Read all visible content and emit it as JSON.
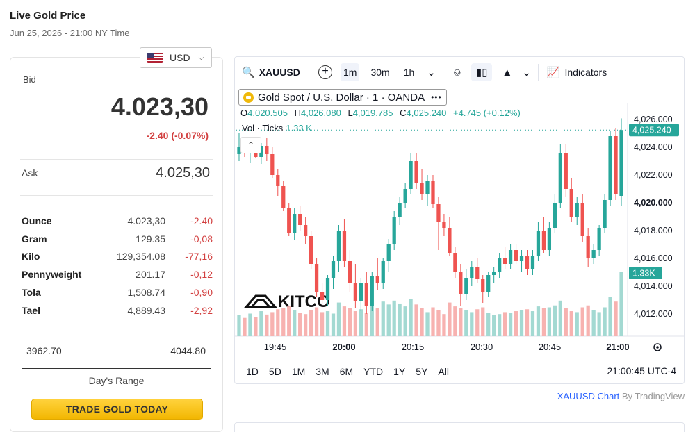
{
  "header": {
    "title": "Live Gold Price",
    "date": "Jun 25, 2026 - 21:00 NY Time"
  },
  "currency": {
    "selected": "USD"
  },
  "quote": {
    "bid_label": "Bid",
    "bid": "4.023,30",
    "bid_change": "-2.40 (-0.07%)",
    "ask_label": "Ask",
    "ask": "4.025,30",
    "units": [
      {
        "name": "Ounce",
        "price": "4.023,30",
        "change": "-2.40"
      },
      {
        "name": "Gram",
        "price": "129.35",
        "change": "-0,08"
      },
      {
        "name": "Kilo",
        "price": "129,354.08",
        "change": "-77,16"
      },
      {
        "name": "Pennyweight",
        "price": "201.17",
        "change": "-0,12"
      },
      {
        "name": "Tola",
        "price": "1,508.74",
        "change": "-0,90"
      },
      {
        "name": "Tael",
        "price": "4,889.43",
        "change": "-2,92"
      }
    ],
    "range_low": "3962.70",
    "range_high": "4044.80",
    "range_label": "Day's Range",
    "trade_button": "TRADE GOLD TODAY"
  },
  "toolbar": {
    "symbol": "XAUUSD",
    "intervals": [
      "1m",
      "30m",
      "1h"
    ],
    "active_interval": "1m",
    "indicators_label": "Indicators"
  },
  "legend": {
    "title": "Gold Spot / U.S. Dollar · 1 · OANDA",
    "o_label": "O",
    "o": "4,020.505",
    "h_label": "H",
    "h": "4,026.080",
    "l_label": "L",
    "l": "4,019.785",
    "c_label": "C",
    "c": "4,025.240",
    "change": "+4.745 (+0.12%)",
    "vol_label": "Vol · Ticks",
    "vol_value": "1.33 K"
  },
  "watermark": "KITCO",
  "periods": [
    "1D",
    "5D",
    "1M",
    "3M",
    "6M",
    "YTD",
    "1Y",
    "5Y",
    "All"
  ],
  "clock": "21:00:45 UTC-4",
  "attribution": {
    "link": "XAUUSD Chart",
    "by": "By TradingView"
  },
  "colors": {
    "up": "#26a69a",
    "down": "#ef5350",
    "vol_up": "#a3d9d2",
    "vol_down": "#f7b2b0",
    "price_label": "#26a69a"
  },
  "chart_data": {
    "type": "candlestick",
    "x_ticks": [
      "19:45",
      "20:00",
      "20:15",
      "20:30",
      "20:45",
      "21:00"
    ],
    "x_ticks_bold": [
      "20:00",
      "21:00"
    ],
    "y_ticks": [
      "4,026.000",
      "4,024.000",
      "4,022.000",
      "4,020.000",
      "4,018.000",
      "4,016.000",
      "4,014.000",
      "4,012.000"
    ],
    "y_ticks_bold": [
      "4,020.000"
    ],
    "ylim": [
      4010.4,
      4027.0
    ],
    "last_price_label": "4,025.240",
    "last_price": 4025.24,
    "volume_label": "1.33K",
    "candles": [
      {
        "o": 4023.5,
        "h": 4025.0,
        "l": 4023.0,
        "c": 4024.0,
        "v": 0.44
      },
      {
        "o": 4024.0,
        "h": 4024.6,
        "l": 4023.3,
        "c": 4023.6,
        "v": 0.38
      },
      {
        "o": 4023.6,
        "h": 4024.2,
        "l": 4022.9,
        "c": 4023.9,
        "v": 0.47
      },
      {
        "o": 4023.9,
        "h": 4024.5,
        "l": 4023.2,
        "c": 4023.3,
        "v": 0.4
      },
      {
        "o": 4023.3,
        "h": 4024.3,
        "l": 4022.8,
        "c": 4024.1,
        "v": 0.52
      },
      {
        "o": 4024.1,
        "h": 4024.7,
        "l": 4023.0,
        "c": 4023.5,
        "v": 0.45
      },
      {
        "o": 4023.5,
        "h": 4024.0,
        "l": 4021.8,
        "c": 4022.0,
        "v": 0.5
      },
      {
        "o": 4022.0,
        "h": 4022.4,
        "l": 4020.5,
        "c": 4021.2,
        "v": 0.56
      },
      {
        "o": 4021.2,
        "h": 4021.6,
        "l": 4019.4,
        "c": 4019.6,
        "v": 0.58
      },
      {
        "o": 4019.6,
        "h": 4020.0,
        "l": 4017.6,
        "c": 4017.8,
        "v": 0.62
      },
      {
        "o": 4017.8,
        "h": 4019.6,
        "l": 4017.3,
        "c": 4019.2,
        "v": 0.54
      },
      {
        "o": 4019.2,
        "h": 4019.8,
        "l": 4018.0,
        "c": 4018.4,
        "v": 0.48
      },
      {
        "o": 4018.4,
        "h": 4019.0,
        "l": 4017.0,
        "c": 4017.6,
        "v": 0.46
      },
      {
        "o": 4017.6,
        "h": 4018.0,
        "l": 4015.2,
        "c": 4015.6,
        "v": 0.55
      },
      {
        "o": 4015.6,
        "h": 4016.0,
        "l": 4013.2,
        "c": 4013.6,
        "v": 0.6
      },
      {
        "o": 4013.6,
        "h": 4014.2,
        "l": 4012.4,
        "c": 4013.0,
        "v": 0.5
      },
      {
        "o": 4013.0,
        "h": 4014.8,
        "l": 4012.6,
        "c": 4014.6,
        "v": 0.52
      },
      {
        "o": 4014.6,
        "h": 4016.2,
        "l": 4013.8,
        "c": 4015.8,
        "v": 0.47
      },
      {
        "o": 4015.8,
        "h": 4018.4,
        "l": 4015.0,
        "c": 4018.0,
        "v": 0.7
      },
      {
        "o": 4018.0,
        "h": 4018.8,
        "l": 4015.4,
        "c": 4015.8,
        "v": 0.62
      },
      {
        "o": 4015.8,
        "h": 4016.6,
        "l": 4013.6,
        "c": 4014.2,
        "v": 0.58
      },
      {
        "o": 4014.2,
        "h": 4015.6,
        "l": 4012.4,
        "c": 4012.9,
        "v": 0.52
      },
      {
        "o": 4012.9,
        "h": 4014.6,
        "l": 4012.2,
        "c": 4014.2,
        "v": 0.56
      },
      {
        "o": 4014.2,
        "h": 4015.0,
        "l": 4012.0,
        "c": 4012.6,
        "v": 0.48
      },
      {
        "o": 4012.6,
        "h": 4015.0,
        "l": 4012.2,
        "c": 4014.7,
        "v": 0.64
      },
      {
        "o": 4014.7,
        "h": 4016.0,
        "l": 4013.7,
        "c": 4014.2,
        "v": 0.58
      },
      {
        "o": 4014.2,
        "h": 4016.0,
        "l": 4013.8,
        "c": 4015.8,
        "v": 0.72
      },
      {
        "o": 4015.8,
        "h": 4017.4,
        "l": 4015.0,
        "c": 4017.0,
        "v": 0.66
      },
      {
        "o": 4017.0,
        "h": 4019.4,
        "l": 4016.6,
        "c": 4019.0,
        "v": 0.74
      },
      {
        "o": 4019.0,
        "h": 4020.4,
        "l": 4018.4,
        "c": 4020.0,
        "v": 0.68
      },
      {
        "o": 4020.0,
        "h": 4021.4,
        "l": 4019.6,
        "c": 4021.0,
        "v": 0.62
      },
      {
        "o": 4021.0,
        "h": 4023.6,
        "l": 4020.6,
        "c": 4023.0,
        "v": 0.78
      },
      {
        "o": 4023.0,
        "h": 4023.6,
        "l": 4021.0,
        "c": 4021.4,
        "v": 0.66
      },
      {
        "o": 4021.4,
        "h": 4022.4,
        "l": 4020.2,
        "c": 4020.6,
        "v": 0.58
      },
      {
        "o": 4020.6,
        "h": 4022.0,
        "l": 4019.8,
        "c": 4021.6,
        "v": 0.5
      },
      {
        "o": 4021.6,
        "h": 4022.0,
        "l": 4019.6,
        "c": 4019.9,
        "v": 0.6
      },
      {
        "o": 4019.9,
        "h": 4020.4,
        "l": 4016.6,
        "c": 4018.6,
        "v": 0.54
      },
      {
        "o": 4018.6,
        "h": 4019.2,
        "l": 4017.6,
        "c": 4018.2,
        "v": 0.46
      },
      {
        "o": 4018.2,
        "h": 4019.0,
        "l": 4016.2,
        "c": 4016.4,
        "v": 0.7
      },
      {
        "o": 4016.4,
        "h": 4016.8,
        "l": 4014.6,
        "c": 4015.0,
        "v": 0.62
      },
      {
        "o": 4015.0,
        "h": 4015.6,
        "l": 4012.6,
        "c": 4013.4,
        "v": 0.58
      },
      {
        "o": 4013.4,
        "h": 4015.2,
        "l": 4013.0,
        "c": 4014.6,
        "v": 0.54
      },
      {
        "o": 4014.6,
        "h": 4015.8,
        "l": 4014.0,
        "c": 4015.4,
        "v": 0.5
      },
      {
        "o": 4015.4,
        "h": 4016.0,
        "l": 4014.2,
        "c": 4014.5,
        "v": 0.56
      },
      {
        "o": 4014.5,
        "h": 4014.8,
        "l": 4012.8,
        "c": 4013.6,
        "v": 0.6
      },
      {
        "o": 4013.6,
        "h": 4015.0,
        "l": 4013.2,
        "c": 4014.8,
        "v": 0.48
      },
      {
        "o": 4014.8,
        "h": 4015.4,
        "l": 4014.2,
        "c": 4015.0,
        "v": 0.44
      },
      {
        "o": 4015.0,
        "h": 4016.4,
        "l": 4014.6,
        "c": 4016.0,
        "v": 0.46
      },
      {
        "o": 4016.0,
        "h": 4016.8,
        "l": 4015.2,
        "c": 4015.6,
        "v": 0.5
      },
      {
        "o": 4015.6,
        "h": 4017.0,
        "l": 4015.2,
        "c": 4016.6,
        "v": 0.48
      },
      {
        "o": 4016.6,
        "h": 4017.0,
        "l": 4015.6,
        "c": 4015.8,
        "v": 0.52
      },
      {
        "o": 4015.8,
        "h": 4016.6,
        "l": 4015.0,
        "c": 4016.2,
        "v": 0.54
      },
      {
        "o": 4016.2,
        "h": 4016.6,
        "l": 4014.8,
        "c": 4015.2,
        "v": 0.56
      },
      {
        "o": 4015.2,
        "h": 4016.6,
        "l": 4014.8,
        "c": 4016.2,
        "v": 0.52
      },
      {
        "o": 4016.2,
        "h": 4018.6,
        "l": 4015.8,
        "c": 4018.0,
        "v": 0.62
      },
      {
        "o": 4018.0,
        "h": 4019.0,
        "l": 4016.4,
        "c": 4016.6,
        "v": 0.58
      },
      {
        "o": 4016.6,
        "h": 4018.6,
        "l": 4016.2,
        "c": 4018.2,
        "v": 0.6
      },
      {
        "o": 4018.2,
        "h": 4020.6,
        "l": 4017.8,
        "c": 4020.0,
        "v": 0.64
      },
      {
        "o": 4020.0,
        "h": 4024.2,
        "l": 4019.6,
        "c": 4023.6,
        "v": 0.74
      },
      {
        "o": 4023.6,
        "h": 4024.2,
        "l": 4020.4,
        "c": 4021.0,
        "v": 0.58
      },
      {
        "o": 4021.0,
        "h": 4021.8,
        "l": 4018.6,
        "c": 4019.0,
        "v": 0.52
      },
      {
        "o": 4019.0,
        "h": 4020.4,
        "l": 4018.4,
        "c": 4020.0,
        "v": 0.5
      },
      {
        "o": 4020.0,
        "h": 4020.6,
        "l": 4017.2,
        "c": 4017.6,
        "v": 0.6
      },
      {
        "o": 4017.6,
        "h": 4018.2,
        "l": 4015.4,
        "c": 4016.0,
        "v": 0.64
      },
      {
        "o": 4016.0,
        "h": 4017.0,
        "l": 4015.6,
        "c": 4016.6,
        "v": 0.54
      },
      {
        "o": 4016.6,
        "h": 4018.4,
        "l": 4016.2,
        "c": 4018.2,
        "v": 0.5
      },
      {
        "o": 4018.2,
        "h": 4020.6,
        "l": 4017.8,
        "c": 4020.2,
        "v": 0.6
      },
      {
        "o": 4020.2,
        "h": 4025.2,
        "l": 4019.8,
        "c": 4024.8,
        "v": 0.82
      },
      {
        "o": 4024.8,
        "h": 4025.4,
        "l": 4020.2,
        "c": 4020.6,
        "v": 0.72
      },
      {
        "o": 4020.5,
        "h": 4026.08,
        "l": 4019.785,
        "c": 4025.24,
        "v": 1.33
      }
    ]
  }
}
